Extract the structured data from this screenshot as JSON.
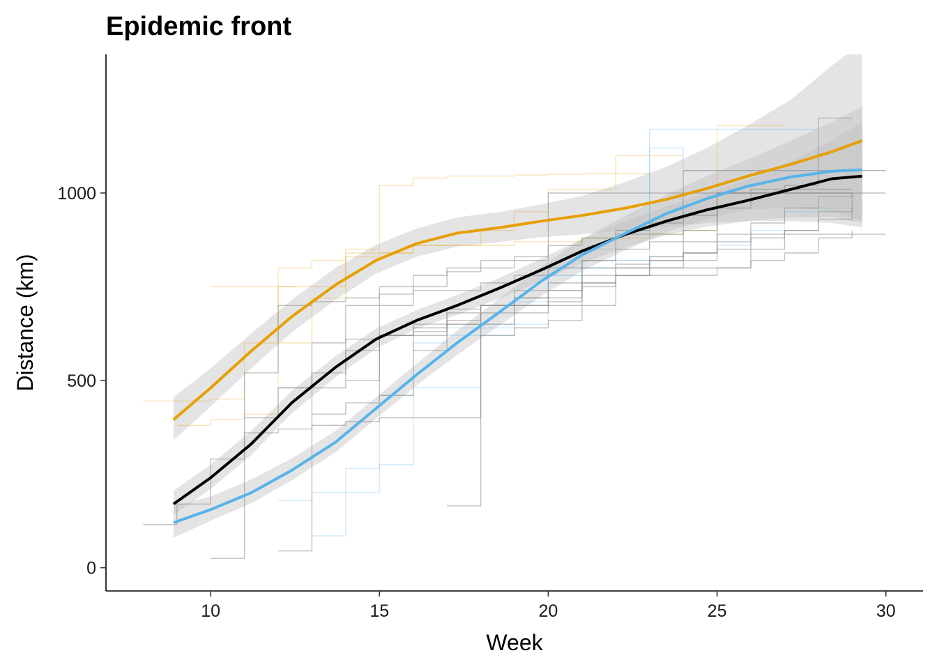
{
  "chart_data": {
    "type": "line",
    "title": "Epidemic front",
    "xlabel": "Week",
    "ylabel": "Distance (km)",
    "xlim": [
      6.9,
      31.1
    ],
    "ylim": [
      -62,
      1370
    ],
    "xticks": [
      10,
      15,
      20,
      25,
      30
    ],
    "yticks": [
      0,
      500,
      1000
    ],
    "x_tick_labels": [
      "10",
      "15",
      "20",
      "25",
      "30"
    ],
    "y_tick_labels": [
      "0",
      "500",
      "1000"
    ],
    "grid": false,
    "legend": "none",
    "colors": {
      "orange": "#E69F00",
      "blue": "#56B4E9",
      "black": "#000000",
      "gray": "#8c8c8c",
      "band": "#bebebe"
    },
    "smooths": [
      {
        "color": "#E69F00",
        "x": [
          8.9,
          10,
          11.2,
          12.4,
          13.7,
          14.9,
          16.1,
          17.3,
          18.6,
          19.8,
          21,
          22.3,
          23.5,
          24.7,
          25.9,
          27.2,
          28.4,
          29.3
        ],
        "y": [
          395,
          480,
          578,
          670,
          755,
          820,
          865,
          893,
          908,
          925,
          940,
          960,
          983,
          1012,
          1045,
          1077,
          1110,
          1140
        ],
        "lower": [
          340,
          430,
          532,
          628,
          715,
          785,
          830,
          857,
          870,
          882,
          890,
          900,
          910,
          920,
          925,
          925,
          920,
          908
        ],
        "upper": [
          455,
          532,
          625,
          715,
          800,
          862,
          905,
          935,
          950,
          970,
          992,
          1030,
          1070,
          1120,
          1180,
          1250,
          1340,
          1400
        ]
      },
      {
        "color": "#000000",
        "x": [
          8.9,
          10,
          11.2,
          12.4,
          13.7,
          14.9,
          16.1,
          17.3,
          18.6,
          19.8,
          21,
          22.3,
          23.5,
          24.7,
          25.9,
          27.2,
          28.4,
          29.3
        ],
        "y": [
          170,
          240,
          330,
          440,
          535,
          610,
          660,
          700,
          748,
          795,
          845,
          890,
          925,
          955,
          980,
          1010,
          1038,
          1045
        ],
        "lower": [
          140,
          210,
          300,
          412,
          508,
          585,
          638,
          675,
          720,
          765,
          812,
          855,
          888,
          910,
          925,
          935,
          935,
          920
        ],
        "upper": [
          205,
          275,
          365,
          472,
          565,
          638,
          688,
          728,
          775,
          825,
          878,
          925,
          965,
          1000,
          1035,
          1085,
          1140,
          1190
        ]
      },
      {
        "color": "#56B4E9",
        "x": [
          8.9,
          10,
          11.2,
          12.4,
          13.7,
          14.9,
          16.1,
          17.3,
          18.6,
          19.8,
          21,
          22.3,
          23.5,
          24.7,
          25.9,
          27.2,
          28.4,
          29.3
        ],
        "y": [
          120,
          155,
          200,
          260,
          335,
          425,
          515,
          600,
          685,
          765,
          835,
          893,
          945,
          985,
          1018,
          1043,
          1058,
          1062
        ],
        "lower": [
          80,
          125,
          172,
          233,
          308,
          398,
          487,
          568,
          650,
          725,
          792,
          848,
          895,
          930,
          955,
          962,
          950,
          925
        ],
        "upper": [
          165,
          190,
          235,
          292,
          365,
          455,
          545,
          632,
          722,
          805,
          878,
          940,
          995,
          1045,
          1090,
          1140,
          1190,
          1230
        ]
      }
    ],
    "raw_series": [
      {
        "color": "#E69F00",
        "x": [
          8,
          9,
          10,
          11,
          12,
          12.5
        ],
        "y": [
          445,
          445,
          450,
          600,
          750,
          750
        ]
      },
      {
        "color": "#E69F00",
        "x": [
          9,
          10,
          11,
          12,
          13,
          14,
          15,
          16,
          17,
          18,
          19,
          20,
          21,
          22,
          23
        ],
        "y": [
          380,
          395,
          410,
          800,
          820,
          850,
          1020,
          1040,
          1045,
          1045,
          1048,
          1050,
          1052,
          1052,
          1055
        ]
      },
      {
        "color": "#E69F00",
        "x": [
          10,
          11,
          12,
          13,
          14,
          15,
          16,
          17,
          18,
          19,
          20,
          21,
          22,
          23,
          24
        ],
        "y": [
          750,
          750,
          750,
          750,
          840,
          840,
          860,
          860,
          900,
          950,
          1010,
          1010,
          1100,
          1100,
          1100
        ]
      },
      {
        "color": "#E69F00",
        "x": [
          12,
          13,
          14,
          15,
          16,
          17,
          18,
          19,
          20,
          21,
          22,
          23,
          24,
          25,
          26,
          27
        ],
        "y": [
          600,
          720,
          830,
          840,
          860,
          860,
          860,
          870,
          870,
          880,
          880,
          890,
          900,
          1180,
          1180,
          1180
        ]
      },
      {
        "color": "#56B4E9",
        "x": [
          12,
          13,
          14,
          15,
          16,
          17,
          18,
          19,
          20,
          21,
          22,
          23,
          24,
          25,
          26,
          27,
          28
        ],
        "y": [
          180,
          200,
          265,
          275,
          480,
          480,
          650,
          700,
          780,
          800,
          820,
          1170,
          1170,
          1170,
          1170,
          1170,
          1170
        ]
      },
      {
        "color": "#56B4E9",
        "x": [
          13,
          14,
          15,
          16,
          17,
          18,
          19,
          20,
          21,
          22,
          23,
          24,
          25,
          26,
          27,
          28,
          29,
          30
        ],
        "y": [
          85,
          200,
          460,
          600,
          620,
          620,
          710,
          800,
          850,
          900,
          1120,
          1060,
          1060,
          1060,
          1060,
          1060,
          1060,
          1060
        ]
      },
      {
        "color": "#56B4E9",
        "x": [
          17,
          18,
          19,
          20,
          21,
          22,
          23,
          24,
          25,
          26,
          27,
          28,
          29
        ],
        "y": [
          640,
          640,
          650,
          780,
          800,
          820,
          830,
          840,
          860,
          900,
          950,
          960,
          960
        ]
      },
      {
        "color": "#8c8c8c",
        "x": [
          8,
          9,
          10,
          11,
          12,
          13,
          14,
          15,
          16,
          17,
          18,
          19,
          20,
          21,
          22,
          23,
          24,
          25,
          26,
          27,
          28,
          29,
          30
        ],
        "y": [
          115,
          170,
          290,
          360,
          370,
          380,
          390,
          400,
          400,
          400,
          700,
          720,
          740,
          820,
          890,
          890,
          1060,
          1060,
          1060,
          1060,
          1060,
          1060,
          1060
        ]
      },
      {
        "color": "#8c8c8c",
        "x": [
          10,
          11,
          12,
          13,
          14,
          15,
          16,
          17,
          18,
          19,
          20,
          21,
          22,
          23,
          24,
          25,
          26,
          27,
          28,
          29
        ],
        "y": [
          25,
          520,
          700,
          710,
          720,
          730,
          740,
          740,
          760,
          780,
          800,
          800,
          810,
          820,
          840,
          1000,
          1000,
          1000,
          1000,
          1000
        ]
      },
      {
        "color": "#8c8c8c",
        "x": [
          11,
          12,
          13,
          14,
          15,
          16,
          17,
          18,
          19,
          20,
          21,
          22,
          23,
          24,
          25,
          26,
          27,
          28,
          29,
          30
        ],
        "y": [
          400,
          480,
          520,
          580,
          620,
          620,
          650,
          700,
          700,
          700,
          780,
          800,
          830,
          870,
          890,
          890,
          890,
          890,
          890,
          890
        ]
      },
      {
        "color": "#8c8c8c",
        "x": [
          12,
          13,
          14,
          15,
          16,
          17,
          18,
          19,
          20,
          21,
          22,
          23,
          24,
          25,
          26,
          27,
          28,
          29
        ],
        "y": [
          45,
          600,
          610,
          620,
          630,
          690,
          700,
          740,
          760,
          820,
          850,
          870,
          900,
          1000,
          1000,
          1020,
          1200,
          1200
        ]
      },
      {
        "color": "#8c8c8c",
        "x": [
          12,
          13,
          14,
          15,
          16,
          17,
          18,
          19,
          20,
          21,
          22,
          23,
          24,
          25,
          26,
          27,
          28,
          29,
          30
        ],
        "y": [
          480,
          480,
          700,
          750,
          780,
          800,
          820,
          830,
          860,
          880,
          900,
          920,
          940,
          960,
          1000,
          1000,
          1000,
          1000,
          1000
        ]
      },
      {
        "color": "#8c8c8c",
        "x": [
          13,
          14,
          15,
          16,
          17,
          18,
          19,
          20,
          21,
          22,
          23,
          24,
          25,
          26,
          27,
          28,
          29
        ],
        "y": [
          410,
          440,
          620,
          650,
          660,
          680,
          700,
          710,
          750,
          780,
          800,
          820,
          850,
          880,
          900,
          930,
          960
        ]
      },
      {
        "color": "#8c8c8c",
        "x": [
          14,
          15,
          16,
          17,
          18,
          19,
          20,
          21,
          22,
          23,
          24,
          25,
          26,
          27,
          28,
          29
        ],
        "y": [
          500,
          700,
          750,
          790,
          800,
          820,
          1000,
          1000,
          1000,
          1000,
          1000,
          1000,
          1010,
          1010,
          1010,
          1010
        ]
      },
      {
        "color": "#8c8c8c",
        "x": [
          15,
          16,
          17,
          18,
          19,
          20,
          21,
          22,
          23,
          24,
          25,
          26,
          27,
          28,
          29
        ],
        "y": [
          460,
          640,
          650,
          650,
          680,
          720,
          760,
          800,
          820,
          840,
          870,
          920,
          960,
          990,
          1000
        ]
      },
      {
        "color": "#8c8c8c",
        "x": [
          16,
          17,
          18,
          19,
          20,
          21,
          22,
          23,
          24,
          25,
          26,
          27,
          28,
          29
        ],
        "y": [
          580,
          680,
          700,
          720,
          740,
          760,
          780,
          780,
          780,
          800,
          850,
          900,
          950,
          1000
        ]
      },
      {
        "color": "#8c8c8c",
        "x": [
          17,
          18,
          19,
          20,
          21,
          22,
          23,
          24,
          25,
          26,
          27,
          28,
          29
        ],
        "y": [
          165,
          620,
          640,
          660,
          700,
          780,
          800,
          800,
          800,
          820,
          840,
          880,
          900
        ]
      }
    ]
  }
}
